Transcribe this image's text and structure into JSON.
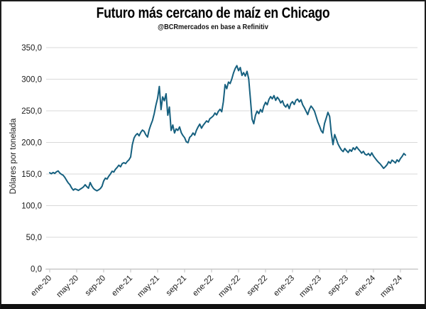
{
  "header": {
    "title": "Futuro más cercano de maíz en Chicago",
    "subtitle": "@BCRmercados en base a Refinitiv"
  },
  "chart_data": {
    "type": "line",
    "title": "Futuro más cercano de maíz en Chicago",
    "subtitle": "@BCRmercados en base a Refinitiv",
    "xlabel": "",
    "ylabel": "Dólares por tonelada",
    "ylim": [
      0,
      350
    ],
    "grid": "horizontal",
    "legend": false,
    "y_tick_values": [
      350,
      300,
      250,
      200,
      150,
      100,
      50,
      0
    ],
    "y_tick_labels": [
      "350,0",
      "300,0",
      "250,0",
      "200,0",
      "150,0",
      "100,0",
      "50,0",
      "0,0"
    ],
    "x_tick_labels": [
      "ene-20",
      "may-20",
      "sep-20",
      "ene-21",
      "may-21",
      "sep-21",
      "ene-22",
      "may-22",
      "sep-22",
      "ene-23",
      "may-23",
      "sep-23",
      "ene-24",
      "may-24"
    ],
    "x_tick_positions_months": [
      0,
      4,
      8,
      12,
      16,
      20,
      24,
      28,
      32,
      36,
      40,
      44,
      48,
      52
    ],
    "colors": {
      "line": "#16607f",
      "grid": "#d9d9d9",
      "axis": "#c9c9c9",
      "text": "#1a1a1a"
    },
    "series": [
      {
        "name": "Futuro más cercano de maíz en Chicago (dólares por tonelada)",
        "start": "ene-20",
        "end": "may-24",
        "points_per_month": 4,
        "values": [
          152,
          150.5,
          152.5,
          151,
          153.5,
          155,
          151.5,
          149.5,
          148,
          144.5,
          140,
          136,
          133,
          128,
          124.5,
          126.5,
          125.5,
          124,
          126,
          127.5,
          129.5,
          133,
          130,
          127.5,
          136.5,
          131,
          127,
          125,
          123.5,
          125,
          127,
          130.5,
          139,
          143.5,
          142,
          146.5,
          150,
          154.5,
          153,
          157.5,
          160.5,
          164,
          161.5,
          166.5,
          168,
          166.5,
          170,
          172.5,
          177,
          196.5,
          207,
          211.5,
          214,
          210.5,
          216,
          219.5,
          217.5,
          212,
          208.5,
          220,
          228,
          235,
          246,
          259,
          270,
          288.5,
          252,
          272,
          266,
          277,
          243,
          256,
          219,
          227.5,
          215,
          221.5,
          219,
          224.5,
          215.5,
          211,
          207.5,
          201,
          199.5,
          208,
          210.5,
          215,
          211.5,
          219,
          224.5,
          229,
          222.5,
          227,
          230.5,
          234,
          232,
          237.5,
          239.5,
          242,
          246.5,
          243.5,
          249,
          252.5,
          248.5,
          264.5,
          291.5,
          285,
          295.5,
          293,
          300.5,
          310,
          317,
          321.5,
          313.5,
          318.5,
          306,
          310.5,
          305,
          312.5,
          300.5,
          270,
          237,
          229.5,
          243,
          249.5,
          245.5,
          252,
          248,
          257.5,
          263.5,
          259.5,
          268,
          272.5,
          269,
          274,
          266.5,
          271.5,
          268,
          262.5,
          266,
          259,
          256,
          260.5,
          253.5,
          261.5,
          264.5,
          260,
          266.5,
          268.5,
          264,
          267.5,
          259.5,
          255,
          249.5,
          244,
          252.5,
          257.5,
          254,
          249.5,
          241,
          232.5,
          226,
          218.5,
          215,
          230,
          238.5,
          247.5,
          241,
          215,
          196.5,
          212.5,
          205,
          197.5,
          192.5,
          188,
          185.5,
          190.5,
          187,
          184,
          188.5,
          186,
          191.5,
          188.5,
          193,
          189.5,
          186.5,
          183,
          186,
          181.5,
          180,
          182.5,
          179,
          183.5,
          178.5,
          175,
          171.5,
          168.5,
          166,
          162.5,
          159,
          161.5,
          164.5,
          169.5,
          167,
          172,
          170,
          167.5,
          172.5,
          169.5,
          174.5,
          178,
          182.5,
          180
        ]
      }
    ]
  }
}
